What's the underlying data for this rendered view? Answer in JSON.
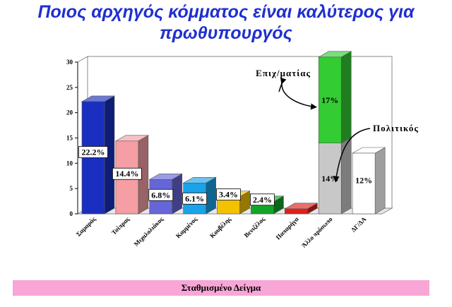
{
  "title_line1": "Ποιος αρχηγός κόμματος είναι καλύτερος για",
  "title_line2": "πρωθυπουργός",
  "footer_label": "Σταθμισμένο Δείγμα",
  "chart_data": {
    "type": "bar",
    "categories": [
      "Σαμαράς",
      "Τσίπρας",
      "Μιχαλολιάκος",
      "Καμμένος",
      "Κουβέλης",
      "Βενιζέλος",
      "Παπαρήγα",
      "Άλλο πρόσωπο",
      "ΔΓ/ΔΑ"
    ],
    "ylim": [
      0,
      30
    ],
    "yticks": [
      0,
      5,
      10,
      15,
      20,
      25,
      30
    ],
    "bars": [
      {
        "value": 22.2,
        "label": "22.2%",
        "color": "#1a2fbf"
      },
      {
        "value": 14.4,
        "label": "14.4%",
        "color": "#f59ea4"
      },
      {
        "value": 6.8,
        "label": "6.8%",
        "color": "#6666d8"
      },
      {
        "value": 6.1,
        "label": "6.1%",
        "color": "#1aa3e8"
      },
      {
        "value": 3.4,
        "label": "3.4%",
        "color": "#f2c200"
      },
      {
        "value": 2.4,
        "label": "2.4%",
        "color": "#11a52a"
      },
      {
        "value": 1,
        "label": "1%",
        "color": "#e0201c"
      },
      {
        "stacked": [
          {
            "value": 14,
            "label": "14%",
            "color": "#c8c8c8"
          },
          {
            "value": 17,
            "label": "17%",
            "color": "#33cc33"
          }
        ]
      },
      {
        "value": 12,
        "label": "12%",
        "color": "#ffffff"
      }
    ],
    "annotations": [
      {
        "text": "Επιχ/ματίας",
        "target": "17%"
      },
      {
        "text": "Πολιτικός",
        "target": "14%"
      }
    ],
    "grid": false
  }
}
